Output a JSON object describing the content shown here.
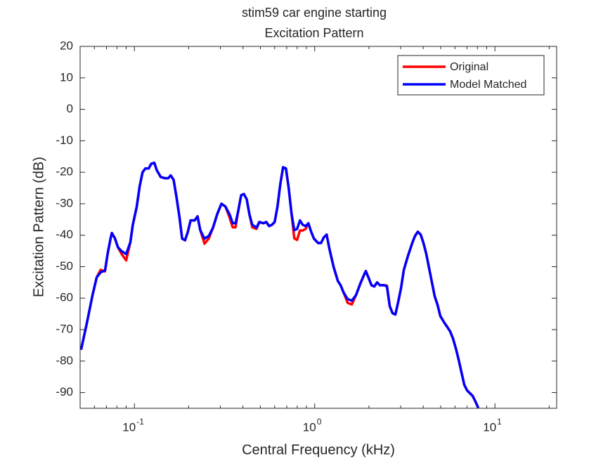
{
  "chart_data": {
    "type": "line",
    "title": "stim59 car engine starting",
    "subtitle": "Excitation Pattern",
    "x_label": "Central Frequency (kHz)",
    "y_label": "Excitation Pattern (dB)",
    "x_log": true,
    "grid": false,
    "legend": "top-right",
    "xlim": [
      0.05,
      22
    ],
    "ylim": [
      -95,
      20
    ],
    "xticks": [
      {
        "value": 0.1,
        "label": "10",
        "exponent": "-1"
      },
      {
        "value": 1,
        "label": "10",
        "exponent": "0"
      },
      {
        "value": 10,
        "label": "10",
        "exponent": "1"
      }
    ],
    "yticks": [
      20,
      10,
      0,
      -10,
      -20,
      -30,
      -40,
      -50,
      -60,
      -70,
      -80,
      -90
    ],
    "x": [
      0.0506,
      0.0545,
      0.0586,
      0.0618,
      0.065,
      0.0687,
      0.0712,
      0.0738,
      0.075,
      0.078,
      0.081,
      0.085,
      0.09,
      0.095,
      0.098,
      0.103,
      0.107,
      0.111,
      0.115,
      0.12,
      0.124,
      0.129,
      0.133,
      0.14,
      0.148,
      0.154,
      0.159,
      0.165,
      0.171,
      0.178,
      0.184,
      0.191,
      0.198,
      0.205,
      0.216,
      0.224,
      0.232,
      0.245,
      0.259,
      0.273,
      0.288,
      0.304,
      0.32,
      0.338,
      0.351,
      0.364,
      0.377,
      0.391,
      0.405,
      0.42,
      0.435,
      0.451,
      0.476,
      0.493,
      0.52,
      0.539,
      0.559,
      0.579,
      0.6,
      0.622,
      0.645,
      0.668,
      0.693,
      0.718,
      0.744,
      0.771,
      0.799,
      0.829,
      0.859,
      0.89,
      0.923,
      0.956,
      0.991,
      1.046,
      1.084,
      1.124,
      1.165,
      1.207,
      1.274,
      1.344,
      1.393,
      1.444,
      1.524,
      1.608,
      1.697,
      1.791,
      1.889,
      1.922,
      1.993,
      2.066,
      2.141,
      2.22,
      2.301,
      2.428,
      2.517,
      2.61,
      2.705,
      2.804,
      2.907,
      3.013,
      3.124,
      3.296,
      3.477,
      3.604,
      3.736,
      3.873,
      4.015,
      4.162,
      4.391,
      4.633,
      4.802,
      4.979,
      5.253,
      5.445,
      5.645,
      5.851,
      6.066,
      6.288,
      6.518,
      6.757,
      7.004,
      7.261,
      7.527,
      7.803,
      8.089
    ],
    "series": [
      {
        "name": "Original",
        "color": "#ff0000",
        "values": [
          -76.4,
          -67.9,
          -59,
          -53.4,
          -51,
          -51.5,
          -45.6,
          -41,
          -39.3,
          -41,
          -43.8,
          -46,
          -48,
          -42.2,
          -36.7,
          -31,
          -24.4,
          -20,
          -18.8,
          -18.8,
          -17.3,
          -17,
          -19.3,
          -21.5,
          -21.9,
          -21.9,
          -21,
          -22.4,
          -27.7,
          -34.4,
          -41.1,
          -41.6,
          -38.9,
          -35.3,
          -35.3,
          -34,
          -38.4,
          -42.7,
          -41,
          -37.6,
          -33.3,
          -30,
          -30.9,
          -34.5,
          -37.5,
          -37.5,
          -32.2,
          -27.3,
          -26.9,
          -28.6,
          -33.5,
          -37.5,
          -38,
          -35.8,
          -36.2,
          -35.8,
          -37.1,
          -36.7,
          -35.8,
          -30.9,
          -23.7,
          -18.4,
          -18.8,
          -25.1,
          -33.1,
          -41,
          -41.5,
          -38.5,
          -38.5,
          -38,
          -36.2,
          -38.9,
          -41.1,
          -42.5,
          -42.5,
          -40.7,
          -39.8,
          -44.3,
          -50.1,
          -54.5,
          -55.9,
          -58.1,
          -61.5,
          -62,
          -59,
          -55.4,
          -52.3,
          -51.4,
          -53.6,
          -55.9,
          -56.3,
          -55,
          -55.9,
          -55.9,
          -56,
          -62.6,
          -64.8,
          -65.2,
          -61.2,
          -56.8,
          -51,
          -46.5,
          -42.5,
          -40.2,
          -38.9,
          -39.8,
          -42.5,
          -46,
          -52.7,
          -59.4,
          -62.1,
          -65.7,
          -67.9,
          -69.2,
          -70.6,
          -72.8,
          -75.9,
          -79.5,
          -83.5,
          -87.5,
          -89.3,
          -90.2,
          -91.1,
          -92.9,
          -94.9
        ]
      },
      {
        "name": "Model Matched",
        "color": "#0000ff",
        "values": [
          -76.4,
          -67.9,
          -59,
          -53.4,
          -51.8,
          -51.2,
          -45.6,
          -41,
          -39.3,
          -41,
          -43.8,
          -45.1,
          -46,
          -42.2,
          -36.7,
          -31,
          -24.4,
          -20,
          -18.8,
          -18.8,
          -17.3,
          -17,
          -19.3,
          -21.5,
          -21.9,
          -21.9,
          -21,
          -22.4,
          -27.7,
          -34.4,
          -41.1,
          -41.6,
          -38.9,
          -35.3,
          -35.3,
          -34,
          -38.4,
          -41.1,
          -40.2,
          -37.6,
          -33.3,
          -30,
          -30.9,
          -33.5,
          -36.2,
          -36.2,
          -32.2,
          -27.3,
          -26.9,
          -28.6,
          -33.5,
          -36.7,
          -37.6,
          -35.8,
          -36.2,
          -35.8,
          -37.1,
          -36.7,
          -35.8,
          -30.9,
          -23.7,
          -18.4,
          -18.8,
          -25.1,
          -33.1,
          -38.4,
          -38,
          -35.3,
          -36.7,
          -37.1,
          -36.2,
          -38.9,
          -41.1,
          -42.5,
          -42.5,
          -40.7,
          -39.8,
          -44.3,
          -50.1,
          -54.5,
          -55.9,
          -58.1,
          -60.3,
          -60.8,
          -59,
          -55.4,
          -52.3,
          -51.4,
          -53.6,
          -55.9,
          -56.3,
          -55,
          -55.9,
          -55.9,
          -56.3,
          -62.6,
          -64.8,
          -65.2,
          -61.2,
          -56.8,
          -51,
          -46.5,
          -42.5,
          -40.2,
          -38.9,
          -39.8,
          -42.5,
          -46,
          -52.7,
          -59.4,
          -62.1,
          -65.7,
          -67.9,
          -69.2,
          -70.6,
          -72.8,
          -75.9,
          -79.5,
          -83.5,
          -87.5,
          -89.3,
          -90.2,
          -91.1,
          -92.9,
          -94.9
        ]
      }
    ]
  }
}
